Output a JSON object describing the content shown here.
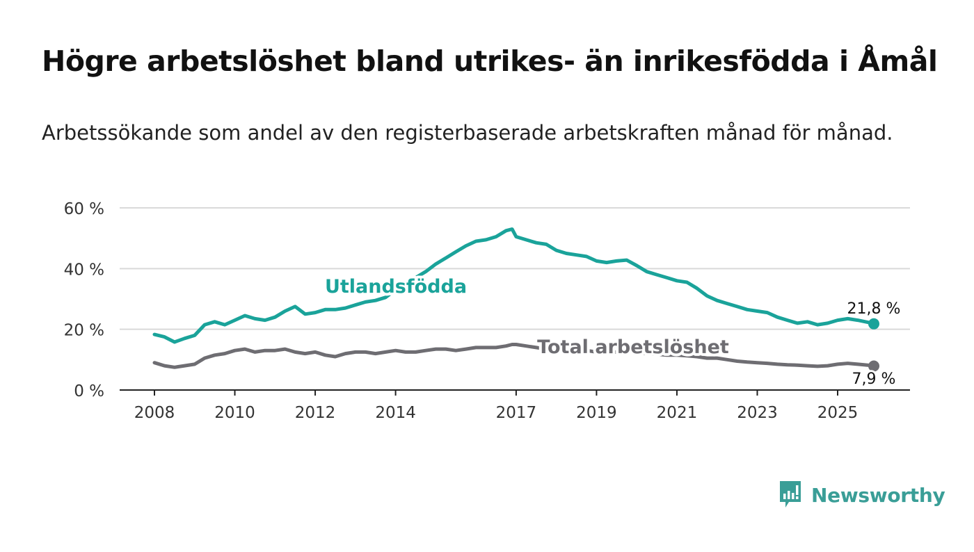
{
  "title": "Högre arbetslöshet bland utrikes- än inrikesfödda i Åmål",
  "subtitle": "Arbetssökande som andel av den registerbaserade arbetskraften månad för månad.",
  "brand": {
    "name": "Newsworthy",
    "color": "#3a9e97"
  },
  "chart_data": {
    "type": "line",
    "title": "Högre arbetslöshet bland utrikes- än inrikesfödda i Åmål",
    "xlabel": "",
    "ylabel": "",
    "ylim": [
      0,
      60
    ],
    "xlim": [
      2008.0,
      2026.8
    ],
    "grid": true,
    "y_ticks": [
      {
        "value": 0,
        "label": "0 %"
      },
      {
        "value": 20,
        "label": "20 %"
      },
      {
        "value": 40,
        "label": "40 %"
      },
      {
        "value": 60,
        "label": "60 %"
      }
    ],
    "x_ticks": [
      {
        "value": 2008,
        "label": "2008"
      },
      {
        "value": 2010,
        "label": "2010"
      },
      {
        "value": 2012,
        "label": "2012"
      },
      {
        "value": 2014,
        "label": "2014"
      },
      {
        "value": 2017,
        "label": "2017"
      },
      {
        "value": 2019,
        "label": "2019"
      },
      {
        "value": 2021,
        "label": "2021"
      },
      {
        "value": 2023,
        "label": "2023"
      },
      {
        "value": 2025,
        "label": "2025"
      }
    ],
    "series": [
      {
        "name": "Utlandsfödda",
        "label": "Utlandsfödda",
        "color": "#1aa39a",
        "end_label": "21,8 %",
        "points": [
          [
            2008.0,
            18.3
          ],
          [
            2008.25,
            17.5
          ],
          [
            2008.5,
            15.8
          ],
          [
            2008.75,
            17.0
          ],
          [
            2009.0,
            18.0
          ],
          [
            2009.25,
            21.5
          ],
          [
            2009.5,
            22.5
          ],
          [
            2009.75,
            21.5
          ],
          [
            2010.0,
            23.0
          ],
          [
            2010.25,
            24.5
          ],
          [
            2010.5,
            23.5
          ],
          [
            2010.75,
            23.0
          ],
          [
            2011.0,
            24.0
          ],
          [
            2011.25,
            26.0
          ],
          [
            2011.5,
            27.5
          ],
          [
            2011.75,
            25.0
          ],
          [
            2012.0,
            25.5
          ],
          [
            2012.25,
            26.5
          ],
          [
            2012.5,
            26.5
          ],
          [
            2012.75,
            27.0
          ],
          [
            2013.0,
            28.0
          ],
          [
            2013.25,
            29.0
          ],
          [
            2013.5,
            29.5
          ],
          [
            2013.75,
            30.5
          ],
          [
            2014.0,
            33.0
          ],
          [
            2014.25,
            35.0
          ],
          [
            2014.5,
            37.0
          ],
          [
            2014.75,
            39.0
          ],
          [
            2015.0,
            41.5
          ],
          [
            2015.25,
            43.5
          ],
          [
            2015.5,
            45.5
          ],
          [
            2015.75,
            47.5
          ],
          [
            2016.0,
            49.0
          ],
          [
            2016.25,
            49.5
          ],
          [
            2016.5,
            50.5
          ],
          [
            2016.75,
            52.5
          ],
          [
            2016.9,
            53.0
          ],
          [
            2017.0,
            50.5
          ],
          [
            2017.25,
            49.5
          ],
          [
            2017.5,
            48.5
          ],
          [
            2017.75,
            48.0
          ],
          [
            2018.0,
            46.0
          ],
          [
            2018.25,
            45.0
          ],
          [
            2018.5,
            44.5
          ],
          [
            2018.75,
            44.0
          ],
          [
            2019.0,
            42.5
          ],
          [
            2019.25,
            42.0
          ],
          [
            2019.5,
            42.5
          ],
          [
            2019.75,
            42.8
          ],
          [
            2020.0,
            41.0
          ],
          [
            2020.25,
            39.0
          ],
          [
            2020.5,
            38.0
          ],
          [
            2020.75,
            37.0
          ],
          [
            2021.0,
            36.0
          ],
          [
            2021.25,
            35.5
          ],
          [
            2021.5,
            33.5
          ],
          [
            2021.75,
            31.0
          ],
          [
            2022.0,
            29.5
          ],
          [
            2022.25,
            28.5
          ],
          [
            2022.5,
            27.5
          ],
          [
            2022.75,
            26.5
          ],
          [
            2023.0,
            26.0
          ],
          [
            2023.25,
            25.5
          ],
          [
            2023.5,
            24.0
          ],
          [
            2023.75,
            23.0
          ],
          [
            2024.0,
            22.0
          ],
          [
            2024.25,
            22.5
          ],
          [
            2024.5,
            21.5
          ],
          [
            2024.75,
            22.0
          ],
          [
            2025.0,
            23.0
          ],
          [
            2025.25,
            23.5
          ],
          [
            2025.5,
            23.0
          ],
          [
            2025.75,
            22.3
          ],
          [
            2025.9,
            21.8
          ]
        ]
      },
      {
        "name": "Total arbetslöshet",
        "label": "Total arbetslöshet",
        "color": "#6e6d72",
        "end_label": "7,9 %",
        "points": [
          [
            2008.0,
            9.0
          ],
          [
            2008.25,
            8.0
          ],
          [
            2008.5,
            7.5
          ],
          [
            2008.75,
            8.0
          ],
          [
            2009.0,
            8.5
          ],
          [
            2009.25,
            10.5
          ],
          [
            2009.5,
            11.5
          ],
          [
            2009.75,
            12.0
          ],
          [
            2010.0,
            13.0
          ],
          [
            2010.25,
            13.5
          ],
          [
            2010.5,
            12.5
          ],
          [
            2010.75,
            13.0
          ],
          [
            2011.0,
            13.0
          ],
          [
            2011.25,
            13.5
          ],
          [
            2011.5,
            12.5
          ],
          [
            2011.75,
            12.0
          ],
          [
            2012.0,
            12.5
          ],
          [
            2012.25,
            11.5
          ],
          [
            2012.5,
            11.0
          ],
          [
            2012.75,
            12.0
          ],
          [
            2013.0,
            12.5
          ],
          [
            2013.25,
            12.5
          ],
          [
            2013.5,
            12.0
          ],
          [
            2013.75,
            12.5
          ],
          [
            2014.0,
            13.0
          ],
          [
            2014.25,
            12.5
          ],
          [
            2014.5,
            12.5
          ],
          [
            2014.75,
            13.0
          ],
          [
            2015.0,
            13.5
          ],
          [
            2015.25,
            13.5
          ],
          [
            2015.5,
            13.0
          ],
          [
            2015.75,
            13.5
          ],
          [
            2016.0,
            14.0
          ],
          [
            2016.25,
            14.0
          ],
          [
            2016.5,
            14.0
          ],
          [
            2016.75,
            14.5
          ],
          [
            2016.9,
            15.0
          ],
          [
            2017.0,
            15.0
          ],
          [
            2017.25,
            14.5
          ],
          [
            2017.5,
            14.0
          ],
          [
            2017.75,
            13.5
          ],
          [
            2018.0,
            13.5
          ],
          [
            2018.25,
            13.5
          ],
          [
            2018.5,
            13.0
          ],
          [
            2018.75,
            13.0
          ],
          [
            2019.0,
            12.5
          ],
          [
            2019.25,
            12.5
          ],
          [
            2019.5,
            12.5
          ],
          [
            2019.75,
            12.5
          ],
          [
            2020.0,
            12.5
          ],
          [
            2020.25,
            12.0
          ],
          [
            2020.5,
            11.8
          ],
          [
            2020.75,
            11.5
          ],
          [
            2021.0,
            11.5
          ],
          [
            2021.25,
            11.3
          ],
          [
            2021.5,
            11.0
          ],
          [
            2021.75,
            10.5
          ],
          [
            2022.0,
            10.5
          ],
          [
            2022.25,
            10.0
          ],
          [
            2022.5,
            9.5
          ],
          [
            2022.75,
            9.2
          ],
          [
            2023.0,
            9.0
          ],
          [
            2023.25,
            8.8
          ],
          [
            2023.5,
            8.5
          ],
          [
            2023.75,
            8.3
          ],
          [
            2024.0,
            8.2
          ],
          [
            2024.25,
            8.0
          ],
          [
            2024.5,
            7.8
          ],
          [
            2024.75,
            8.0
          ],
          [
            2025.0,
            8.5
          ],
          [
            2025.25,
            8.8
          ],
          [
            2025.5,
            8.5
          ],
          [
            2025.75,
            8.2
          ],
          [
            2025.9,
            7.9
          ]
        ]
      }
    ]
  }
}
